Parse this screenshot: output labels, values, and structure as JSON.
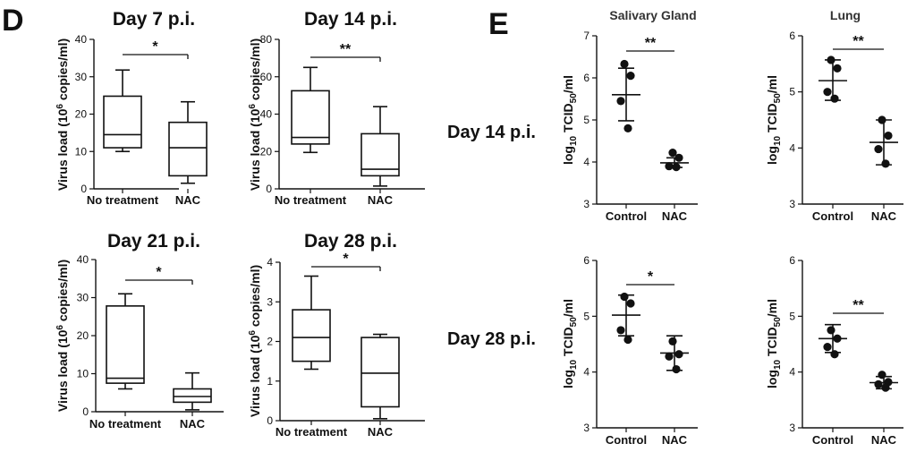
{
  "panel_labels": {
    "d": "D",
    "e": "E"
  },
  "row_labels": [
    "Day 14 p.i.",
    "Day 28 p.i."
  ],
  "column_titles": [
    "Salivary Gland",
    "Lung"
  ],
  "chart_data": [
    {
      "id": "d1",
      "type": "box",
      "title": "Day 7 p.i.",
      "ylabel": "Virus load (10^6 copies/ml)",
      "ylabel_parts": [
        "Virus load (10",
        "6",
        " copies/ml)"
      ],
      "categories": [
        "No treatment",
        "NAC"
      ],
      "ylim": [
        0,
        40
      ],
      "yticks": [
        0,
        10,
        20,
        30,
        40
      ],
      "boxes": [
        {
          "min": 10,
          "q1": 11,
          "median": 14.5,
          "q3": 24.8,
          "max": 31.8
        },
        {
          "min": 1.5,
          "q1": 3.5,
          "median": 11,
          "q3": 17.8,
          "max": 23.3
        }
      ],
      "significance": "*"
    },
    {
      "id": "d2",
      "type": "box",
      "title": "Day 14 p.i.",
      "ylabel": "Virus load (10^6 copies/ml)",
      "ylabel_parts": [
        "Virus load (10",
        "6",
        " copies/ml)"
      ],
      "categories": [
        "No treatment",
        "NAC"
      ],
      "ylim": [
        0,
        80
      ],
      "yticks": [
        0,
        20,
        40,
        60,
        80
      ],
      "boxes": [
        {
          "min": 19.5,
          "q1": 24,
          "median": 27.5,
          "q3": 52.5,
          "max": 65
        },
        {
          "min": 1.5,
          "q1": 7,
          "median": 10.5,
          "q3": 29.5,
          "max": 44
        }
      ],
      "significance": "**"
    },
    {
      "id": "d3",
      "type": "box",
      "title": "Day 21 p.i.",
      "ylabel": "Virus load (10^6 copies/ml)",
      "ylabel_parts": [
        "Virus load (10",
        "6",
        " copies/ml)"
      ],
      "categories": [
        "No treatment",
        "NAC"
      ],
      "ylim": [
        0,
        40
      ],
      "yticks": [
        0,
        10,
        20,
        30,
        40
      ],
      "boxes": [
        {
          "min": 6,
          "q1": 7.5,
          "median": 8.8,
          "q3": 27.8,
          "max": 31
        },
        {
          "min": 0.5,
          "q1": 2.5,
          "median": 4,
          "q3": 6,
          "max": 10.2
        }
      ],
      "significance": "*"
    },
    {
      "id": "d4",
      "type": "box",
      "title": "Day 28 p.i.",
      "ylabel": "Virus load (10^6 copies/ml)",
      "ylabel_parts": [
        "Virus load (10",
        "6",
        " copies/ml)"
      ],
      "categories": [
        "No treatment",
        "NAC"
      ],
      "ylim": [
        0,
        4
      ],
      "yticks": [
        0,
        1,
        2,
        3,
        4
      ],
      "boxes": [
        {
          "min": 1.3,
          "q1": 1.5,
          "median": 2.1,
          "q3": 2.8,
          "max": 3.65
        },
        {
          "min": 0.05,
          "q1": 0.35,
          "median": 1.2,
          "q3": 2.1,
          "max": 2.18
        }
      ],
      "significance": "*"
    },
    {
      "id": "e1",
      "type": "scatter",
      "title": "Salivary Gland",
      "row": "Day 14 p.i.",
      "ylabel": "log10 TCID50/ml",
      "ylabel_parts": [
        "log",
        "10",
        " TCID",
        "50",
        "/ml"
      ],
      "categories": [
        "Control",
        "NAC"
      ],
      "ylim": [
        3,
        7
      ],
      "yticks": [
        3,
        4,
        5,
        6,
        7
      ],
      "points": [
        [
          6.33,
          6.05,
          5.45,
          4.8
        ],
        [
          4.22,
          4.1,
          3.9,
          3.88
        ]
      ],
      "mean": [
        5.6,
        3.98
      ],
      "sd_low": [
        4.98,
        3.87
      ],
      "sd_high": [
        6.23,
        4.1
      ],
      "significance": "**"
    },
    {
      "id": "e2",
      "type": "scatter",
      "title": "Lung",
      "row": "Day 14 p.i.",
      "ylabel": "log10 TCID50/ml",
      "ylabel_parts": [
        "log",
        "10",
        " TCID",
        "50",
        "/ml"
      ],
      "categories": [
        "Control",
        "NAC"
      ],
      "ylim": [
        3,
        6
      ],
      "yticks": [
        3,
        4,
        5,
        6
      ],
      "points": [
        [
          5.57,
          5.42,
          5.0,
          4.88
        ],
        [
          4.5,
          4.22,
          3.98,
          3.72
        ]
      ],
      "mean": [
        5.2,
        4.1
      ],
      "sd_low": [
        4.85,
        3.7
      ],
      "sd_high": [
        5.57,
        4.5
      ],
      "significance": "**"
    },
    {
      "id": "e3",
      "type": "scatter",
      "title": "",
      "row": "Day 28 p.i.",
      "ylabel": "log10 TCID50/ml",
      "ylabel_parts": [
        "log",
        "10",
        " TCID",
        "50",
        "/ml"
      ],
      "categories": [
        "Control",
        "NAC"
      ],
      "ylim": [
        3,
        6
      ],
      "yticks": [
        3,
        4,
        5,
        6
      ],
      "points": [
        [
          5.35,
          5.23,
          4.75,
          4.58
        ],
        [
          4.55,
          4.32,
          4.28,
          4.05
        ]
      ],
      "mean": [
        5.02,
        4.34
      ],
      "sd_low": [
        4.65,
        4.03
      ],
      "sd_high": [
        5.38,
        4.65
      ],
      "significance": "*"
    },
    {
      "id": "e4",
      "type": "scatter",
      "title": "",
      "row": "Day 28 p.i.",
      "ylabel": "log10 TCID50/ml",
      "ylabel_parts": [
        "log",
        "10",
        " TCID",
        "50",
        "/ml"
      ],
      "categories": [
        "Control",
        "NAC"
      ],
      "ylim": [
        3,
        6
      ],
      "yticks": [
        3,
        4,
        5,
        6
      ],
      "points": [
        [
          4.75,
          4.6,
          4.45,
          4.32
        ],
        [
          3.95,
          3.82,
          3.78,
          3.72
        ]
      ],
      "mean": [
        4.6,
        3.81
      ],
      "sd_low": [
        4.35,
        3.7
      ],
      "sd_high": [
        4.85,
        3.92
      ],
      "significance": "**"
    }
  ]
}
